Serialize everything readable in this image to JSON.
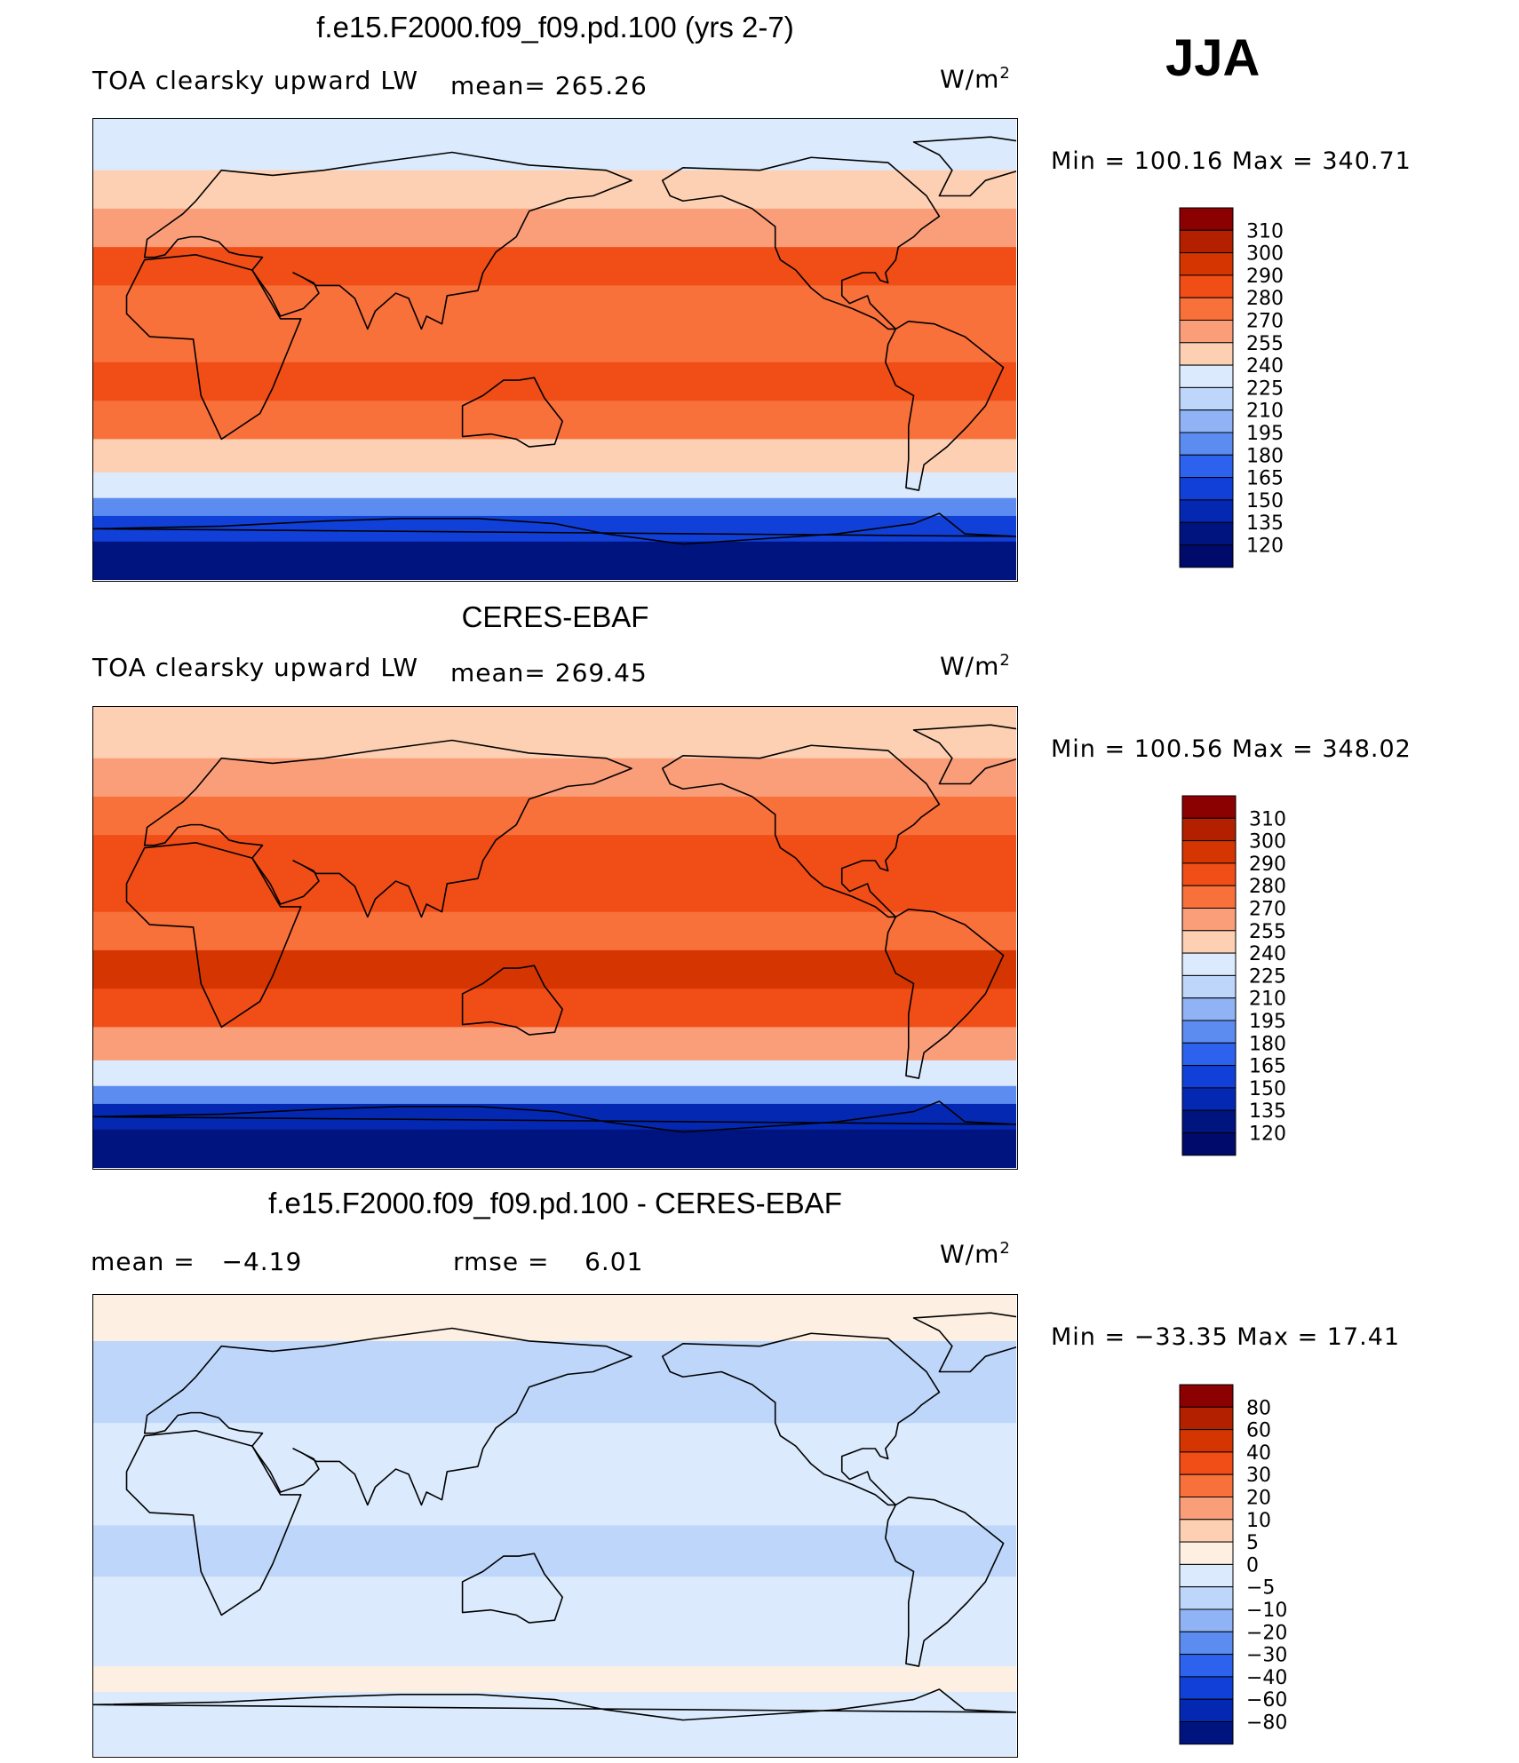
{
  "season_label": "JJA",
  "units_base": "W/m",
  "units_exp": "2",
  "panels": [
    {
      "title": "f.e15.F2000.f09_f09.pd.100 (yrs 2-7)",
      "left_label": "TOA clearsky upward LW",
      "mean_label": "mean=",
      "mean_value": "265.26",
      "minmax": "Min  =  100.16  Max  =  340.71",
      "kind": "absolute"
    },
    {
      "title": "CERES-EBAF",
      "left_label": "TOA clearsky upward LW",
      "mean_label": "mean=",
      "mean_value": "269.45",
      "minmax": "Min  =  100.56  Max  =  348.02",
      "kind": "absolute"
    },
    {
      "title": "f.e15.F2000.f09_f09.pd.100 - CERES-EBAF",
      "left_label": "mean =",
      "left_value": "−4.19",
      "mean_label": "rmse =",
      "mean_value": "6.01",
      "minmax": "Min  =  −33.35  Max  =   17.41",
      "kind": "difference"
    }
  ],
  "chart_data": [
    {
      "type": "heatmap",
      "title": "f.e15.F2000.f09_f09.pd.100 (yrs 2-7)",
      "variable": "TOA clearsky upward LW",
      "units": "W/m2",
      "mean": 265.26,
      "min": 100.16,
      "max": 340.71,
      "colorbar_levels": [
        "310",
        "300",
        "290",
        "280",
        "270",
        "255",
        "240",
        "225",
        "210",
        "195",
        "180",
        "165",
        "150",
        "135",
        "120"
      ],
      "colorbar_colors": [
        "#8b0000",
        "#b22000",
        "#d53500",
        "#f04d17",
        "#f8703a",
        "#fa9e7a",
        "#fdd0b4",
        "#dbeafc",
        "#bdd6fa",
        "#8fb3f5",
        "#5c8cf0",
        "#2c62ee",
        "#1040d8",
        "#0428b2",
        "#001480"
      ],
      "colorbar_top_color": "#8b0000",
      "colorbar_bottom_color": "#000a6a",
      "bands": [
        {
          "lat_from": 90,
          "lat_to": 70,
          "value": 235
        },
        {
          "lat_from": 70,
          "lat_to": 55,
          "value": 250
        },
        {
          "lat_from": 55,
          "lat_to": 40,
          "value": 265
        },
        {
          "lat_from": 40,
          "lat_to": 25,
          "value": 280
        },
        {
          "lat_from": 25,
          "lat_to": 10,
          "value": 278
        },
        {
          "lat_from": 10,
          "lat_to": -5,
          "value": 272
        },
        {
          "lat_from": -5,
          "lat_to": -20,
          "value": 285
        },
        {
          "lat_from": -20,
          "lat_to": -35,
          "value": 275
        },
        {
          "lat_from": -35,
          "lat_to": -48,
          "value": 250
        },
        {
          "lat_from": -48,
          "lat_to": -58,
          "value": 225
        },
        {
          "lat_from": -58,
          "lat_to": -65,
          "value": 190
        },
        {
          "lat_from": -65,
          "lat_to": -75,
          "value": 150
        },
        {
          "lat_from": -75,
          "lat_to": -90,
          "value": 125
        }
      ]
    },
    {
      "type": "heatmap",
      "title": "CERES-EBAF",
      "variable": "TOA clearsky upward LW",
      "units": "W/m2",
      "mean": 269.45,
      "min": 100.56,
      "max": 348.02,
      "colorbar_levels": [
        "310",
        "300",
        "290",
        "280",
        "270",
        "255",
        "240",
        "225",
        "210",
        "195",
        "180",
        "165",
        "150",
        "135",
        "120"
      ],
      "colorbar_colors": [
        "#8b0000",
        "#b22000",
        "#d53500",
        "#f04d17",
        "#f8703a",
        "#fa9e7a",
        "#fdd0b4",
        "#dbeafc",
        "#bdd6fa",
        "#8fb3f5",
        "#5c8cf0",
        "#2c62ee",
        "#1040d8",
        "#0428b2",
        "#001480"
      ],
      "colorbar_top_color": "#8b0000",
      "colorbar_bottom_color": "#000a6a",
      "bands": [
        {
          "lat_from": 90,
          "lat_to": 70,
          "value": 240
        },
        {
          "lat_from": 70,
          "lat_to": 55,
          "value": 258
        },
        {
          "lat_from": 55,
          "lat_to": 40,
          "value": 272
        },
        {
          "lat_from": 40,
          "lat_to": 25,
          "value": 285
        },
        {
          "lat_from": 25,
          "lat_to": 10,
          "value": 283
        },
        {
          "lat_from": 10,
          "lat_to": -5,
          "value": 278
        },
        {
          "lat_from": -5,
          "lat_to": -20,
          "value": 290
        },
        {
          "lat_from": -20,
          "lat_to": -35,
          "value": 280
        },
        {
          "lat_from": -35,
          "lat_to": -48,
          "value": 255
        },
        {
          "lat_from": -48,
          "lat_to": -58,
          "value": 230
        },
        {
          "lat_from": -58,
          "lat_to": -65,
          "value": 185
        },
        {
          "lat_from": -65,
          "lat_to": -75,
          "value": 148
        },
        {
          "lat_from": -75,
          "lat_to": -90,
          "value": 122
        }
      ]
    },
    {
      "type": "heatmap",
      "title": "f.e15.F2000.f09_f09.pd.100 - CERES-EBAF",
      "variable": "difference",
      "units": "W/m2",
      "mean": -4.19,
      "rmse": 6.01,
      "min": -33.35,
      "max": 17.41,
      "colorbar_levels": [
        "80",
        "60",
        "40",
        "30",
        "20",
        "10",
        "5",
        "0",
        "−5",
        "−10",
        "−20",
        "−30",
        "−40",
        "−60",
        "−80"
      ],
      "colorbar_colors": [
        "#8b0000",
        "#b22000",
        "#d53500",
        "#f04d17",
        "#f8703a",
        "#fa9e7a",
        "#fdd0b4",
        "#fdf0e2",
        "#dbeafc",
        "#bdd6fa",
        "#8fb3f5",
        "#5c8cf0",
        "#2c62ee",
        "#1040d8",
        "#0428b2"
      ],
      "colorbar_top_color": "#8b0000",
      "colorbar_bottom_color": "#001480",
      "bands": [
        {
          "lat_from": 90,
          "lat_to": 72,
          "value": 2
        },
        {
          "lat_from": 72,
          "lat_to": 55,
          "value": -8
        },
        {
          "lat_from": 55,
          "lat_to": 40,
          "value": -6
        },
        {
          "lat_from": 40,
          "lat_to": 20,
          "value": -4
        },
        {
          "lat_from": 20,
          "lat_to": 0,
          "value": -3
        },
        {
          "lat_from": 0,
          "lat_to": -20,
          "value": -6
        },
        {
          "lat_from": -20,
          "lat_to": -40,
          "value": -4
        },
        {
          "lat_from": -40,
          "lat_to": -55,
          "value": -3
        },
        {
          "lat_from": -55,
          "lat_to": -65,
          "value": 3
        },
        {
          "lat_from": -65,
          "lat_to": -78,
          "value": -4
        },
        {
          "lat_from": -78,
          "lat_to": -90,
          "value": -2
        }
      ]
    }
  ]
}
